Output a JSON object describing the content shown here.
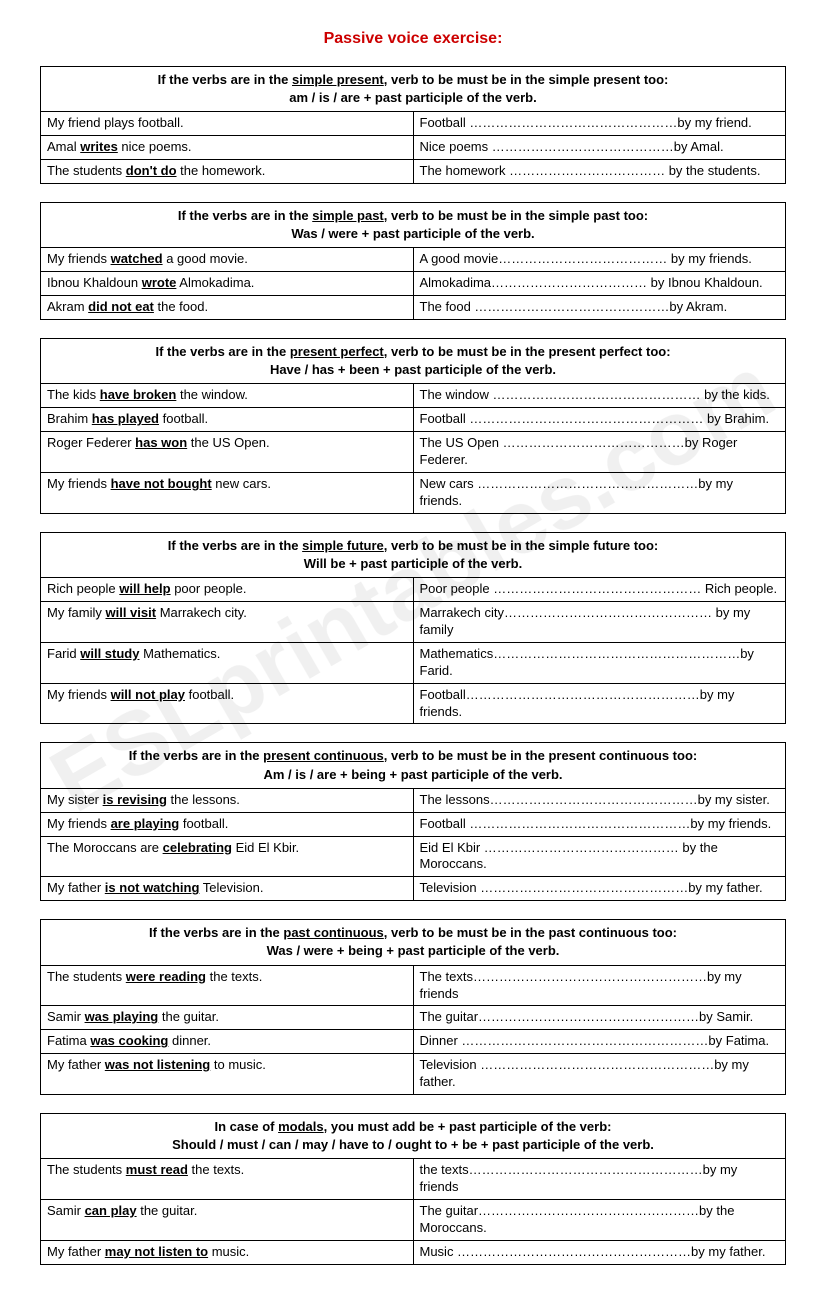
{
  "title": "Passive voice exercise:",
  "watermark": "ESLprintables.com",
  "sections": [
    {
      "header_line1_pre": "If the verbs are in the ",
      "header_line1_u": "simple present",
      "header_line1_post": ", verb to be must be in the simple present too:",
      "header_line2": "am / is / are + past participle of the verb.",
      "rows": [
        {
          "left_pre": "My friend plays football.",
          "left_u": "",
          "left_post": "",
          "right": "Football …………………………………………by my friend."
        },
        {
          "left_pre": "Amal ",
          "left_u": "writes",
          "left_post": " nice poems.",
          "right": "Nice poems ……………………………………by Amal."
        },
        {
          "left_pre": "The students ",
          "left_u": "don't do",
          "left_post": " the homework.",
          "right": "The homework ……………………………… by the students."
        }
      ]
    },
    {
      "header_line1_pre": "If the verbs are in the ",
      "header_line1_u": "simple past",
      "header_line1_post": ", verb to be must be in the simple past too:",
      "header_line2": "Was / were + past participle of the verb.",
      "rows": [
        {
          "left_pre": "My friends ",
          "left_u": "watched",
          "left_post": " a good movie.",
          "right": "A good movie………………………………… by my friends."
        },
        {
          "left_pre": "Ibnou Khaldoun ",
          "left_u": "wrote",
          "left_post": " Almokadima.",
          "right": "Almokadima……………………………… by Ibnou Khaldoun."
        },
        {
          "left_pre": "Akram ",
          "left_u": "did not eat",
          "left_post": " the food.",
          "right": "The food ………………………………………by Akram."
        }
      ]
    },
    {
      "header_line1_pre": "If the verbs are in the ",
      "header_line1_u": "present perfect",
      "header_line1_post": ", verb to be must be in the present perfect too:",
      "header_line2": "Have / has + been + past participle of the verb.",
      "rows": [
        {
          "left_pre": "The kids ",
          "left_u": "have broken",
          "left_post": " the window.",
          "right": "The window ………………………………………… by the kids."
        },
        {
          "left_pre": "Brahim ",
          "left_u": "has played",
          "left_post": " football.",
          "right": "Football ……………………………………………… by Brahim."
        },
        {
          "left_pre": "Roger Federer ",
          "left_u": "has won",
          "left_post": " the US Open.",
          "right": "The US Open ……………………………………by Roger Federer."
        },
        {
          "left_pre": "My friends ",
          "left_u": "have not bought",
          "left_post": " new cars.",
          "right": "New cars ……………………………………………by my friends."
        }
      ]
    },
    {
      "header_line1_pre": "If the verbs are in the ",
      "header_line1_u": "simple future",
      "header_line1_post": ", verb to be must be in the simple future too:",
      "header_line2": "Will be + past participle of the verb.",
      "rows": [
        {
          "left_pre": "Rich people ",
          "left_u": "will help",
          "left_post": " poor people.",
          "right": "Poor people ………………………………………… Rich people."
        },
        {
          "left_pre": "My family ",
          "left_u": "will visit",
          "left_post": " Marrakech city.",
          "right": "Marrakech city………………………………………… by my family"
        },
        {
          "left_pre": "Farid ",
          "left_u": "will study",
          "left_post": " Mathematics.",
          "right": "Mathematics…………………………………………………by Farid."
        },
        {
          "left_pre": "My friends ",
          "left_u": "will not play",
          "left_post": " football.",
          "right": "Football………………………………………………by my friends."
        }
      ]
    },
    {
      "header_line1_pre": "If the verbs are in the ",
      "header_line1_u": "present continuous",
      "header_line1_post": ", verb to be must be in the present continuous too:",
      "header_line2": "Am / is / are + being + past participle of the verb.",
      "rows": [
        {
          "left_pre": "My sister ",
          "left_u": "is revising",
          "left_post": " the lessons.",
          "right": "The lessons…………………………………………by my sister."
        },
        {
          "left_pre": "My friends ",
          "left_u": "are playing",
          "left_post": " football.",
          "right": "Football ……………………………………………by my friends."
        },
        {
          "left_pre": "The Moroccans are ",
          "left_u": "celebrating",
          "left_post": " Eid El Kbir.",
          "right": "Eid El Kbir ……………………………………… by the Moroccans."
        },
        {
          "left_pre": "My father ",
          "left_u": "is not watching",
          "left_post": " Television.",
          "right": "Television …………………………………………by my father."
        }
      ]
    },
    {
      "header_line1_pre": "If the verbs are in the ",
      "header_line1_u": "past continuous",
      "header_line1_post": ", verb to be must be in the past continuous too:",
      "header_line2": "Was / were + being + past participle of the verb.",
      "rows": [
        {
          "left_pre": "The students ",
          "left_u": "were reading",
          "left_post": " the texts.",
          "right": "The texts………………………………………………by my friends"
        },
        {
          "left_pre": "Samir ",
          "left_u": "was playing",
          "left_post": " the guitar.",
          "right": "The guitar……………………………………………by Samir."
        },
        {
          "left_pre": "Fatima ",
          "left_u": "was cooking",
          "left_post": " dinner.",
          "right": "Dinner …………………………………………………by Fatima."
        },
        {
          "left_pre": "My father ",
          "left_u": "was not listening",
          "left_post": " to music.",
          "right": "Television ………………………………………………by my father."
        }
      ]
    },
    {
      "header_line1_pre": "In case of ",
      "header_line1_u": "modals",
      "header_line1_post": ", you must add be + past participle of the verb:",
      "header_line2": "Should / must / can / may / have to / ought to + be + past participle of the verb.",
      "rows": [
        {
          "left_pre": "The students ",
          "left_u": "must read",
          "left_post": " the texts.",
          "right": "the texts………………………………………………by my friends"
        },
        {
          "left_pre": "Samir ",
          "left_u": "can play",
          "left_post": " the guitar.",
          "right": "The guitar……………………………………………by the Moroccans."
        },
        {
          "left_pre": "My father ",
          "left_u": "may not listen to",
          "left_post": " music.",
          "right": "Music ………………………………………………by my father."
        }
      ]
    }
  ]
}
